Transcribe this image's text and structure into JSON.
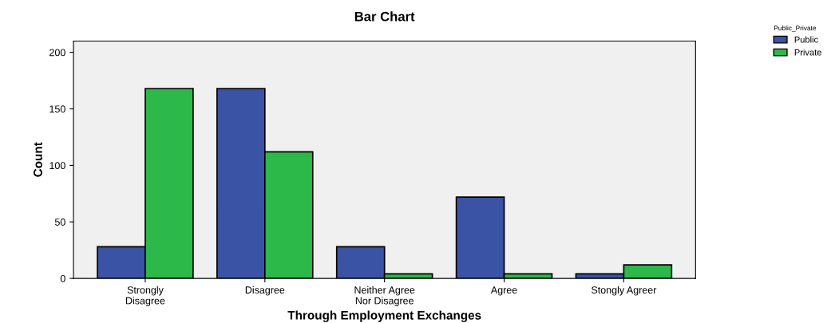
{
  "chart_data": {
    "type": "bar",
    "title": "Bar Chart",
    "xlabel": "Through Employment Exchanges",
    "ylabel": "Count",
    "legend_title": "Public_Private",
    "categories": [
      "Strongly\nDisagree",
      "Disagree",
      "Neither Agree\nNor Disagree",
      "Agree",
      "Stongly Agreer"
    ],
    "series": [
      {
        "name": "Public",
        "color": "#3a53a4",
        "values": [
          28,
          168,
          28,
          72,
          4
        ]
      },
      {
        "name": "Private",
        "color": "#2db84a",
        "values": [
          168,
          112,
          4,
          4,
          12
        ]
      }
    ],
    "ylim": [
      0,
      210
    ],
    "yticks": [
      0,
      50,
      100,
      150,
      200
    ],
    "grid": false,
    "legend": "top right"
  }
}
